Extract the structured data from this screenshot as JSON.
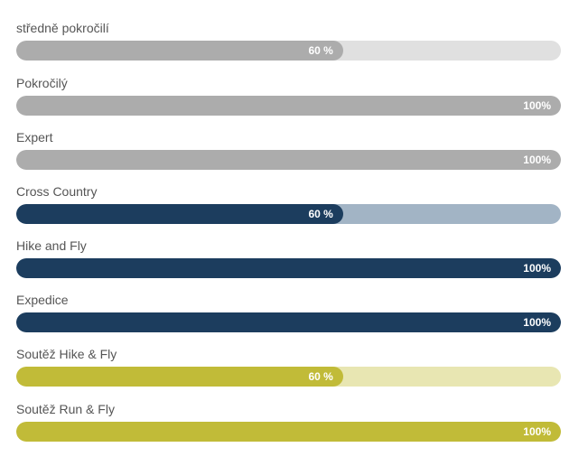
{
  "skills": [
    {
      "label": "středně pokročilí",
      "value_text": "60 %",
      "level": 0.6,
      "fill_color": "#acacac",
      "track_color": "#e0e0e0"
    },
    {
      "label": "Pokročilý",
      "value_text": "100%",
      "level": 1.0,
      "fill_color": "#acacac",
      "track_color": "#e0e0e0"
    },
    {
      "label": "Expert",
      "value_text": "100%",
      "level": 1.0,
      "fill_color": "#acacac",
      "track_color": "#e0e0e0"
    },
    {
      "label": "Cross Country",
      "value_text": "60 %",
      "level": 0.6,
      "fill_color": "#1c3d5e",
      "track_color": "#a2b4c5"
    },
    {
      "label": "Hike and Fly",
      "value_text": "100%",
      "level": 1.0,
      "fill_color": "#1c3d5e",
      "track_color": "#a2b4c5"
    },
    {
      "label": "Expedice",
      "value_text": "100%",
      "level": 1.0,
      "fill_color": "#1c3d5e",
      "track_color": "#a2b4c5"
    },
    {
      "label": "Soutěž Hike & Fly",
      "value_text": "60 %",
      "level": 0.6,
      "fill_color": "#c1bb38",
      "track_color": "#e8e6b2"
    },
    {
      "label": "Soutěž Run & Fly",
      "value_text": "100%",
      "level": 1.0,
      "fill_color": "#c1bb38",
      "track_color": "#e8e6b2"
    }
  ]
}
